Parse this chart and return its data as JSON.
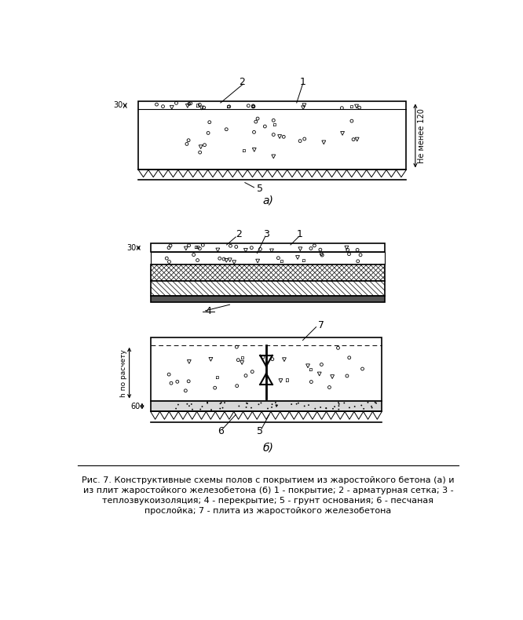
{
  "bg_color": "#ffffff",
  "line_color": "#000000",
  "fig_width": 6.66,
  "fig_height": 7.9,
  "label_a": "а)",
  "label_b": "б)",
  "caption_line1": "Рис. 7. Конструктивные схемы полов с покрытием из жаростойкого бетона (а) и",
  "caption_line2": "из плит жаростойкого железобетона (б) 1 - покрытие; 2 - арматурная сетка; 3 -",
  "caption_line3": "теплозвукоизоляция; 4 - перекрытие; 5 - грунт основания; 6 - песчаная",
  "caption_line4": "прослойка; 7 - плита из жаростойкого железобетона"
}
